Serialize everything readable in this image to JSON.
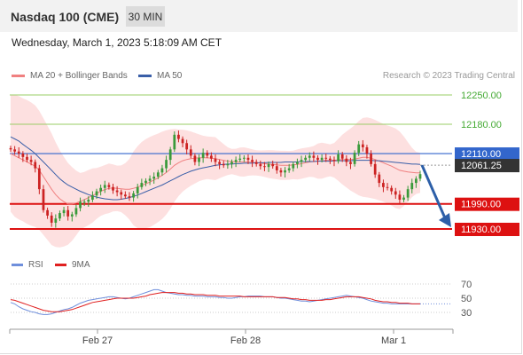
{
  "header": {
    "title": "Nasdaq 100 (CME)",
    "timeframe": "30 MIN",
    "date": "Wednesday, March 1, 2023 5:18:09 AM CET"
  },
  "legend": {
    "ma20_label": "MA 20 + Bollinger Bands",
    "ma50_label": "MA 50",
    "credit": "Research © 2023 Trading Central"
  },
  "rsi_legend": {
    "rsi_label": "RSI",
    "ma9_label": "9MA"
  },
  "colors": {
    "ma20": "#f08080",
    "ma50": "#3a5fa8",
    "rsi": "#6f8fdc",
    "ma9": "#e02020",
    "candle_up": "#3a9a3a",
    "candle_down": "#cc2222",
    "bollinger_fill": "#fde0e0",
    "green_level": "#9acc66",
    "blue_level": "#3366cc",
    "red_level": "#dd1111",
    "current_price": "#333333"
  },
  "chart_data": [
    {
      "type": "candlestick",
      "title": "Nasdaq 100 (CME) 30 MIN",
      "x_tick_labels": [
        "Feb 27",
        "Feb 28",
        "Mar 1"
      ],
      "ylim": [
        11900,
        12300
      ],
      "levels": [
        {
          "value": 12250.0,
          "label": "12250.00",
          "style": "resistance"
        },
        {
          "value": 12180.0,
          "label": "12180.00",
          "style": "resistance"
        },
        {
          "value": 12110.0,
          "label": "12110.00",
          "style": "pivot"
        },
        {
          "value": 11990.0,
          "label": "11990.00",
          "style": "support"
        },
        {
          "value": 11930.0,
          "label": "11930.00",
          "style": "support"
        }
      ],
      "last_price": {
        "value": 12061.25,
        "label": "12061.25"
      },
      "forecast_arrow": {
        "from": 12061.25,
        "to": 11930.0
      },
      "close": [
        12120,
        12115,
        12110,
        12102,
        12095,
        12090,
        12075,
        12025,
        11975,
        11962,
        11945,
        11955,
        11968,
        11975,
        11960,
        11965,
        11980,
        11995,
        11995,
        12000,
        12010,
        12020,
        12028,
        12035,
        12030,
        12022,
        12018,
        12012,
        12008,
        12005,
        12015,
        12030,
        12040,
        12045,
        12050,
        12055,
        12065,
        12075,
        12095,
        12120,
        12155,
        12145,
        12135,
        12120,
        12105,
        12090,
        12100,
        12112,
        12105,
        12098,
        12090,
        12085,
        12082,
        12085,
        12090,
        12095,
        12098,
        12100,
        12095,
        12090,
        12085,
        12080,
        12078,
        12085,
        12080,
        12070,
        12065,
        12070,
        12075,
        12085,
        12090,
        12095,
        12100,
        12105,
        12100,
        12095,
        12100,
        12098,
        12095,
        12092,
        12108,
        12098,
        12090,
        12085,
        12112,
        12132,
        12125,
        12110,
        12085,
        12060,
        12040,
        12030,
        12028,
        12020,
        12012,
        12000,
        12005,
        12025,
        12040,
        12050,
        12061
      ],
      "ma20": [
        12110,
        12105,
        12100,
        12095,
        12090,
        12085,
        12080,
        12070,
        12055,
        12040,
        12025,
        12012,
        12002,
        11995,
        11990,
        11990,
        11992,
        11996,
        12000,
        12005,
        12010,
        12015,
        12020,
        12024,
        12027,
        12028,
        12027,
        12026,
        12025,
        12025,
        12027,
        12030,
        12034,
        12038,
        12042,
        12047,
        12052,
        12058,
        12065,
        12073,
        12082,
        12088,
        12093,
        12096,
        12098,
        12099,
        12100,
        12100,
        12100,
        12099,
        12098,
        12096,
        12094,
        12092,
        12091,
        12090,
        12090,
        12090,
        12090,
        12089,
        12088,
        12087,
        12086,
        12085,
        12084,
        12083,
        12082,
        12082,
        12082,
        12083,
        12084,
        12086,
        12088,
        12090,
        12091,
        12092,
        12093,
        12094,
        12094,
        12094,
        12095,
        12096,
        12096,
        12096,
        12097,
        12099,
        12101,
        12101,
        12099,
        12096,
        12092,
        12088,
        12084,
        12080,
        12075,
        12070,
        12068,
        12066,
        12065,
        12064,
        12064
      ],
      "ma50": [
        12150,
        12145,
        12140,
        12132,
        12125,
        12118,
        12110,
        12100,
        12090,
        12080,
        12070,
        12060,
        12050,
        12042,
        12035,
        12030,
        12025,
        12020,
        12016,
        12012,
        12009,
        12006,
        12004,
        12002,
        12001,
        12000,
        12000,
        12001,
        12003,
        12005,
        12008,
        12011,
        12015,
        12019,
        12023,
        12027,
        12031,
        12035,
        12040,
        12045,
        12050,
        12055,
        12060,
        12064,
        12068,
        12071,
        12074,
        12076,
        12078,
        12080,
        12082,
        12083,
        12084,
        12085,
        12085,
        12086,
        12086,
        12087,
        12087,
        12087,
        12088,
        12088,
        12088,
        12089,
        12089,
        12089,
        12089,
        12090,
        12090,
        12090,
        12090,
        12091,
        12091,
        12091,
        12091,
        12092,
        12092,
        12092,
        12092,
        12093,
        12093,
        12093,
        12093,
        12093,
        12094,
        12094,
        12094,
        12094,
        12094,
        12093,
        12093,
        12092,
        12091,
        12090,
        12089,
        12088,
        12087,
        12086,
        12085,
        12085,
        12084
      ]
    },
    {
      "type": "line",
      "title": "RSI",
      "ylim": [
        20,
        80
      ],
      "y_ticks": [
        70,
        50,
        30
      ],
      "series": [
        {
          "name": "RSI",
          "values": [
            44,
            42,
            38,
            35,
            33,
            31,
            30,
            28,
            27,
            27,
            28,
            30,
            32,
            34,
            35,
            37,
            40,
            43,
            45,
            47,
            48,
            49,
            50,
            51,
            52,
            52,
            51,
            50,
            49,
            50,
            52,
            54,
            56,
            58,
            60,
            62,
            62,
            60,
            58,
            57,
            56,
            55,
            55,
            54,
            54,
            53,
            53,
            53,
            52,
            52,
            52,
            51,
            51,
            50,
            50,
            51,
            52,
            52,
            53,
            53,
            53,
            53,
            52,
            52,
            52,
            51,
            50,
            50,
            49,
            48,
            47,
            46,
            46,
            45,
            46,
            47,
            48,
            49,
            50,
            51,
            52,
            53,
            54,
            53,
            52,
            51,
            50,
            48,
            46,
            45,
            44,
            43,
            43,
            42,
            42,
            42,
            42,
            42,
            42,
            42,
            42
          ]
        },
        {
          "name": "9MA",
          "values": [
            48,
            47,
            45,
            43,
            41,
            39,
            37,
            35,
            33,
            32,
            31,
            31,
            31,
            32,
            33,
            34,
            36,
            38,
            40,
            42,
            44,
            45,
            46,
            47,
            48,
            49,
            50,
            50,
            50,
            50,
            50,
            51,
            52,
            53,
            55,
            56,
            57,
            58,
            58,
            58,
            58,
            57,
            57,
            56,
            56,
            55,
            55,
            55,
            54,
            54,
            54,
            53,
            53,
            53,
            53,
            53,
            53,
            52,
            52,
            52,
            52,
            52,
            52,
            52,
            52,
            51,
            51,
            51,
            50,
            49,
            49,
            48,
            48,
            47,
            47,
            47,
            47,
            48,
            48,
            49,
            50,
            51,
            52,
            52,
            52,
            52,
            51,
            50,
            49,
            47,
            46,
            45,
            45,
            44,
            44,
            43,
            43,
            43,
            42,
            42,
            42
          ]
        }
      ]
    }
  ]
}
